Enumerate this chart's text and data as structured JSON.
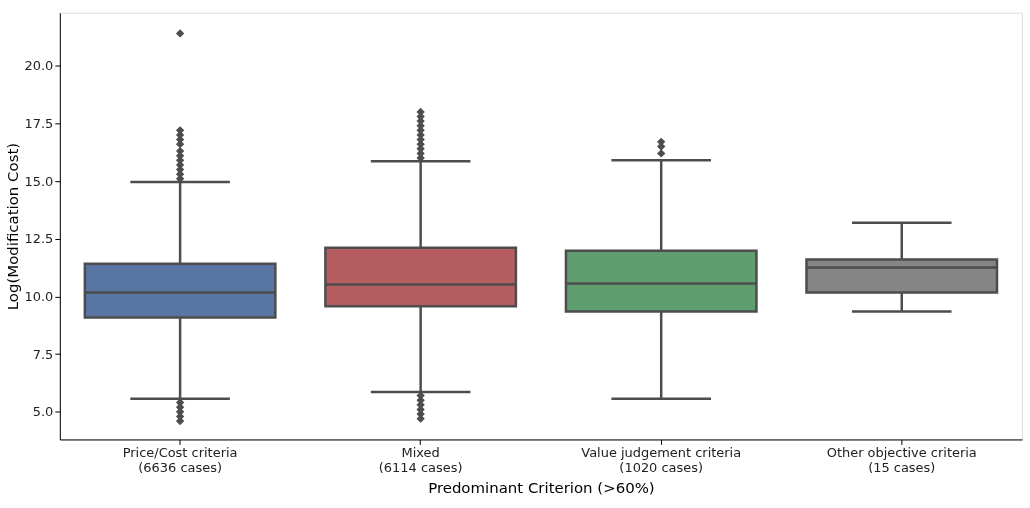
{
  "chart_data": {
    "type": "box",
    "xlabel": "Predominant Criterion (>60%)",
    "ylabel": "Log(Modification Cost)",
    "categories": [
      "Price/Cost criteria\n(6636 cases)",
      "Mixed\n(6114 cases)",
      "Value judgement criteria\n(1020 cases)",
      "Other objective criteria\n(15 cases)"
    ],
    "colors": [
      "#5875a4",
      "#b55d60",
      "#5f9e6e",
      "#858585"
    ],
    "boxes": [
      {
        "low": 5.56,
        "q1": 9.09,
        "median": 10.17,
        "q3": 11.42,
        "high": 14.96,
        "outliers": [
          15.1,
          15.3,
          15.5,
          15.7,
          15.9,
          16.1,
          16.3,
          16.6,
          16.8,
          17.0,
          17.2,
          21.4,
          5.4,
          5.2,
          5.0,
          4.8,
          4.6
        ]
      },
      {
        "low": 5.86,
        "q1": 9.57,
        "median": 10.52,
        "q3": 12.11,
        "high": 15.86,
        "outliers": [
          16.0,
          16.2,
          16.4,
          16.6,
          16.8,
          17.0,
          17.2,
          17.4,
          17.6,
          17.8,
          18.0,
          5.7,
          5.5,
          5.3,
          5.1,
          4.9,
          4.7
        ]
      },
      {
        "low": 5.56,
        "q1": 9.35,
        "median": 10.56,
        "q3": 11.98,
        "high": 15.9,
        "outliers": [
          16.2,
          16.5,
          16.7
        ]
      },
      {
        "low": 9.35,
        "q1": 10.17,
        "median": 11.25,
        "q3": 11.6,
        "high": 13.19
      }
    ],
    "ylim": [
      3.8,
      22.3
    ],
    "yticks": [
      {
        "value": 5,
        "label": "5.0"
      },
      {
        "value": 7.5,
        "label": "7.5"
      },
      {
        "value": 10,
        "label": "10.0"
      },
      {
        "value": 12.5,
        "label": "12.5"
      },
      {
        "value": 15,
        "label": "15.0"
      },
      {
        "value": 17.5,
        "label": "17.5"
      },
      {
        "value": 20,
        "label": "20.0"
      }
    ],
    "grid": false,
    "marker": "diamond"
  }
}
